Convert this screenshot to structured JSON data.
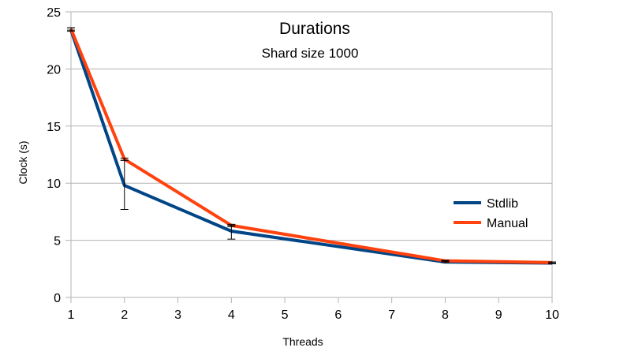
{
  "chart_data": {
    "type": "line",
    "title": "Durations",
    "subtitle": "Shard size 1000",
    "xlabel": "Threads",
    "ylabel": "Clock (s)",
    "categories": [
      "1",
      "2",
      "3",
      "4",
      "5",
      "6",
      "7",
      "8",
      "9",
      "10"
    ],
    "ylim": [
      0,
      25
    ],
    "yticks": [
      0,
      5,
      10,
      15,
      20,
      25
    ],
    "grid": true,
    "legend_position": "right",
    "series": [
      {
        "name": "Stdlib",
        "color": "#004586",
        "points": [
          {
            "x": 1,
            "y": 23.4,
            "err_low": 23.3,
            "err_high": 23.6
          },
          {
            "x": 2,
            "y": 9.8,
            "err_low": 7.7,
            "err_high": 12.0
          },
          {
            "x": 4,
            "y": 5.8,
            "err_low": 5.1,
            "err_high": 6.3
          },
          {
            "x": 8,
            "y": 3.1,
            "err_low": 3.05,
            "err_high": 3.2
          },
          {
            "x": 10,
            "y": 3.0,
            "err_low": 2.95,
            "err_high": 3.1
          }
        ]
      },
      {
        "name": "Manual",
        "color": "#ff420e",
        "points": [
          {
            "x": 1,
            "y": 23.5,
            "err_low": 23.4,
            "err_high": 23.6
          },
          {
            "x": 2,
            "y": 12.1,
            "err_low": 12.0,
            "err_high": 12.2
          },
          {
            "x": 4,
            "y": 6.3,
            "err_low": 6.2,
            "err_high": 6.4
          },
          {
            "x": 8,
            "y": 3.2,
            "err_low": 3.15,
            "err_high": 3.25
          },
          {
            "x": 10,
            "y": 3.05,
            "err_low": 3.0,
            "err_high": 3.1
          }
        ]
      }
    ]
  },
  "colors": {
    "grid": "#b3b3b3",
    "axis": "#b3b3b3",
    "error_bar": "#000000"
  }
}
